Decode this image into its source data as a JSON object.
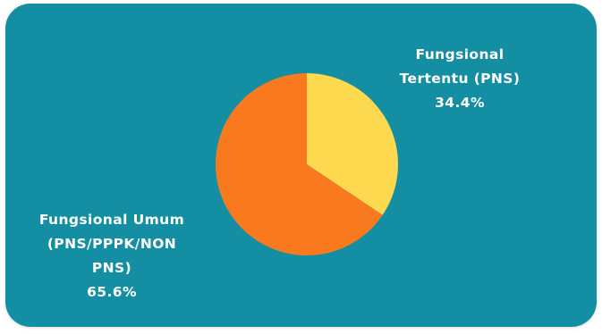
{
  "chart_data": {
    "type": "pie",
    "title": "",
    "slices": [
      {
        "label_lines": [
          "Fungsional",
          "Tertentu (PNS)"
        ],
        "value": 34.4,
        "value_label": "34.4%",
        "color": "#FDD94F"
      },
      {
        "label_lines": [
          "Fungsional Umum",
          "(PNS/PPPK/NON",
          "PNS)"
        ],
        "value": 65.6,
        "value_label": "65.6%",
        "color": "#F97A1E"
      }
    ],
    "start": "12 o'clock",
    "direction": "clockwise",
    "legend": "none"
  },
  "colors": {
    "background": "#138EA2",
    "text": "#FFFFFF"
  }
}
